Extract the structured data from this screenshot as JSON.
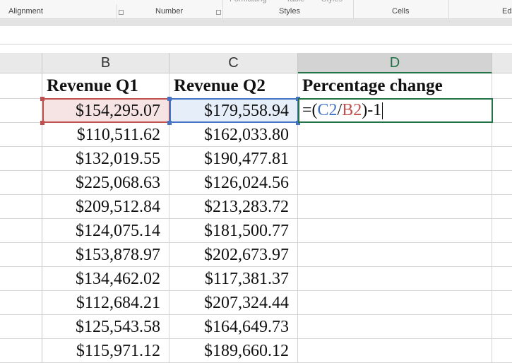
{
  "ribbon": {
    "partial": [
      "Formatting",
      "Table",
      "Styles"
    ],
    "groups": [
      "Alignment",
      "Number",
      "Styles",
      "Cells",
      "Edi"
    ]
  },
  "sheet": {
    "columns": [
      "B",
      "C",
      "D"
    ],
    "headers": [
      "Revenue Q1",
      "Revenue Q2",
      "Percentage change"
    ],
    "rows": [
      [
        "$154,295.07",
        "$179,558.94"
      ],
      [
        "$110,511.62",
        "$162,033.80"
      ],
      [
        "$132,019.55",
        "$190,477.81"
      ],
      [
        "$225,068.63",
        "$126,024.56"
      ],
      [
        "$209,512.84",
        "$213,283.72"
      ],
      [
        "$124,075.14",
        "$181,500.77"
      ],
      [
        "$153,878.97",
        "$202,673.97"
      ],
      [
        "$134,462.02",
        "$117,381.37"
      ],
      [
        "$112,684.21",
        "$207,324.44"
      ],
      [
        "$125,543.58",
        "$164,649.73"
      ],
      [
        "$115,971.12",
        "$189,660.12"
      ]
    ],
    "formula": [
      "=(",
      "C2",
      "/",
      "B2",
      ")-1"
    ]
  }
}
